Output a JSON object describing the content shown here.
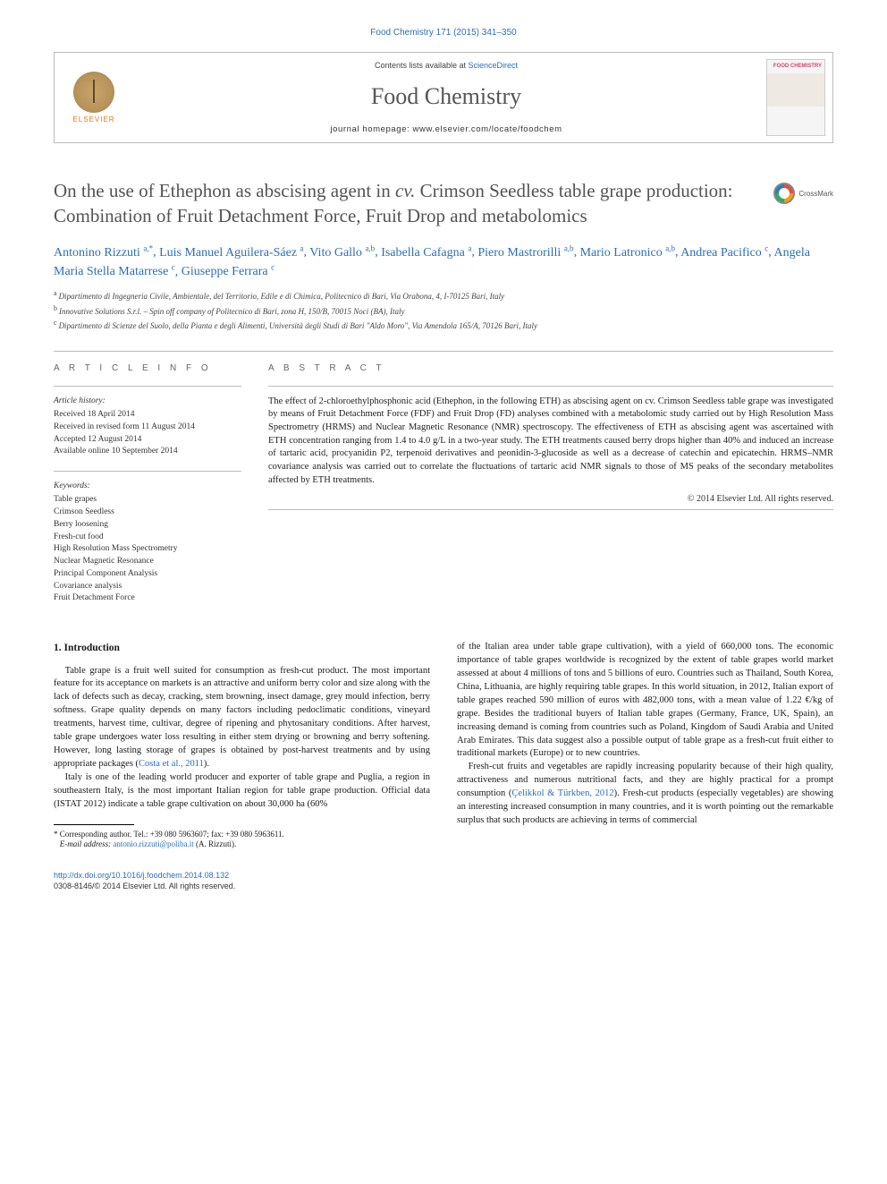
{
  "pageref": {
    "journal": "Food Chemistry",
    "cite": "171 (2015) 341–350"
  },
  "masthead": {
    "publisher": "ELSEVIER",
    "contents_prefix": "Contents lists available at ",
    "contents_link": "ScienceDirect",
    "journal_name": "Food Chemistry",
    "homepage_label": "journal homepage: ",
    "homepage_url": "www.elsevier.com/locate/foodchem",
    "cover_title": "FOOD CHEMISTRY"
  },
  "crossmark": {
    "label": "CrossMark"
  },
  "title": {
    "pre": "On the use of Ethephon as abscising agent in ",
    "em": "cv.",
    "post": " Crimson Seedless table grape production: Combination of Fruit Detachment Force, Fruit Drop and metabolomics"
  },
  "authors": [
    {
      "name": "Antonino Rizzuti",
      "aff": "a,",
      "mark": "*"
    },
    {
      "name": "Luis Manuel Aguilera-Sáez",
      "aff": "a"
    },
    {
      "name": "Vito Gallo",
      "aff": "a,b"
    },
    {
      "name": "Isabella Cafagna",
      "aff": "a"
    },
    {
      "name": "Piero Mastrorilli",
      "aff": "a,b"
    },
    {
      "name": "Mario Latronico",
      "aff": "a,b"
    },
    {
      "name": "Andrea Pacifico",
      "aff": "c"
    },
    {
      "name": "Angela Maria Stella Matarrese",
      "aff": "c"
    },
    {
      "name": "Giuseppe Ferrara",
      "aff": "c"
    }
  ],
  "affiliations": [
    {
      "key": "a",
      "text": "Dipartimento di Ingegneria Civile, Ambientale, del Territorio, Edile e di Chimica, Politecnico di Bari, Via Orabona, 4, I-70125 Bari, Italy"
    },
    {
      "key": "b",
      "text": "Innovative Solutions S.r.l. – Spin off company of Politecnico di Bari, zona H, 150/B, 70015 Noci (BA), Italy"
    },
    {
      "key": "c",
      "text": "Dipartimento di Scienze del Suolo, della Pianta e degli Alimenti, Università degli Studi di Bari \"Aldo Moro\", Via Amendola 165/A, 70126 Bari, Italy"
    }
  ],
  "info": {
    "head": "A R T I C L E   I N F O",
    "history_label": "Article history:",
    "history": [
      "Received 18 April 2014",
      "Received in revised form 11 August 2014",
      "Accepted 12 August 2014",
      "Available online 10 September 2014"
    ],
    "keywords_label": "Keywords:",
    "keywords": [
      "Table grapes",
      "Crimson Seedless",
      "Berry loosening",
      "Fresh-cut food",
      "High Resolution Mass Spectrometry",
      "Nuclear Magnetic Resonance",
      "Principal Component Analysis",
      "Covariance analysis",
      "Fruit Detachment Force"
    ]
  },
  "abstract": {
    "head": "A B S T R A C T",
    "text": "The effect of 2-chloroethylphosphonic acid (Ethephon, in the following ETH) as abscising agent on cv. Crimson Seedless table grape was investigated by means of Fruit Detachment Force (FDF) and Fruit Drop (FD) analyses combined with a metabolomic study carried out by High Resolution Mass Spectrometry (HRMS) and Nuclear Magnetic Resonance (NMR) spectroscopy. The effectiveness of ETH as abscising agent was ascertained with ETH concentration ranging from 1.4 to 4.0 g/L in a two-year study. The ETH treatments caused berry drops higher than 40% and induced an increase of tartaric acid, procyanidin P2, terpenoid derivatives and peonidin-3-glucoside as well as a decrease of catechin and epicatechin. HRMS–NMR covariance analysis was carried out to correlate the fluctuations of tartaric acid NMR signals to those of MS peaks of the secondary metabolites affected by ETH treatments.",
    "copyright": "© 2014 Elsevier Ltd. All rights reserved."
  },
  "body": {
    "section_number": "1.",
    "section_title": "Introduction",
    "p1a": "Table grape is a fruit well suited for consumption as fresh-cut product. The most important feature for its acceptance on markets is an attractive and uniform berry color and size along with the lack of defects such as decay, cracking, stem browning, insect damage, grey mould infection, berry softness. Grape quality depends on many factors including pedoclimatic conditions, vineyard treatments, harvest time, cultivar, degree of ripening and phytosanitary conditions. After harvest, table grape undergoes water loss resulting in either stem drying or browning and berry softening. However, long lasting storage of grapes is obtained by post-harvest treatments and by using appropriate packages (",
    "p1link": "Costa et al., 2011",
    "p1b": ").",
    "p2": "Italy is one of the leading world producer and exporter of table grape and Puglia, a region in southeastern Italy, is the most important Italian region for table grape production. Official data (ISTAT 2012) indicate a table grape cultivation on about 30,000 ha (60%",
    "p2c": "of the Italian area under table grape cultivation), with a yield of 660,000 tons. The economic importance of table grapes worldwide is recognized by the extent of table grapes world market assessed at about 4 millions of tons and 5 billions of euro. Countries such as Thailand, South Korea, China, Lithuania, are highly requiring table grapes. In this world situation, in 2012, Italian export of table grapes reached 590 million of euros with 482,000 tons, with a mean value of 1.22 €/kg of grape. Besides the traditional buyers of Italian table grapes (Germany, France, UK, Spain), an increasing demand is coming from countries such as Poland, Kingdom of Saudi Arabia and United Arab Emirates. This data suggest also a possible output of table grape as a fresh-cut fruit either to traditional markets (Europe) or to new countries.",
    "p3a": "Fresh-cut fruits and vegetables are rapidly increasing popularity because of their high quality, attractiveness and numerous nutritional facts, and they are highly practical for a prompt consumption (",
    "p3link": "Çelikkol & Türkben, 2012",
    "p3b": "). Fresh-cut products (especially vegetables) are showing an interesting increased consumption in many countries, and it is worth pointing out the remarkable surplus that such products are achieving in terms of commercial"
  },
  "footnote": {
    "corr": "Corresponding author. Tel.: +39 080 5963607; fax: +39 080 5963611.",
    "email_label": "E-mail address:",
    "email": "antonio.rizzuti@poliba.it",
    "email_for": "(A. Rizzuti)."
  },
  "footer": {
    "doi": "http://dx.doi.org/10.1016/j.foodchem.2014.08.132",
    "rights": "0308-8146/© 2014 Elsevier Ltd. All rights reserved."
  },
  "colors": {
    "link": "#2a6ebb",
    "title_grey": "#545454",
    "orange": "#e67817"
  }
}
